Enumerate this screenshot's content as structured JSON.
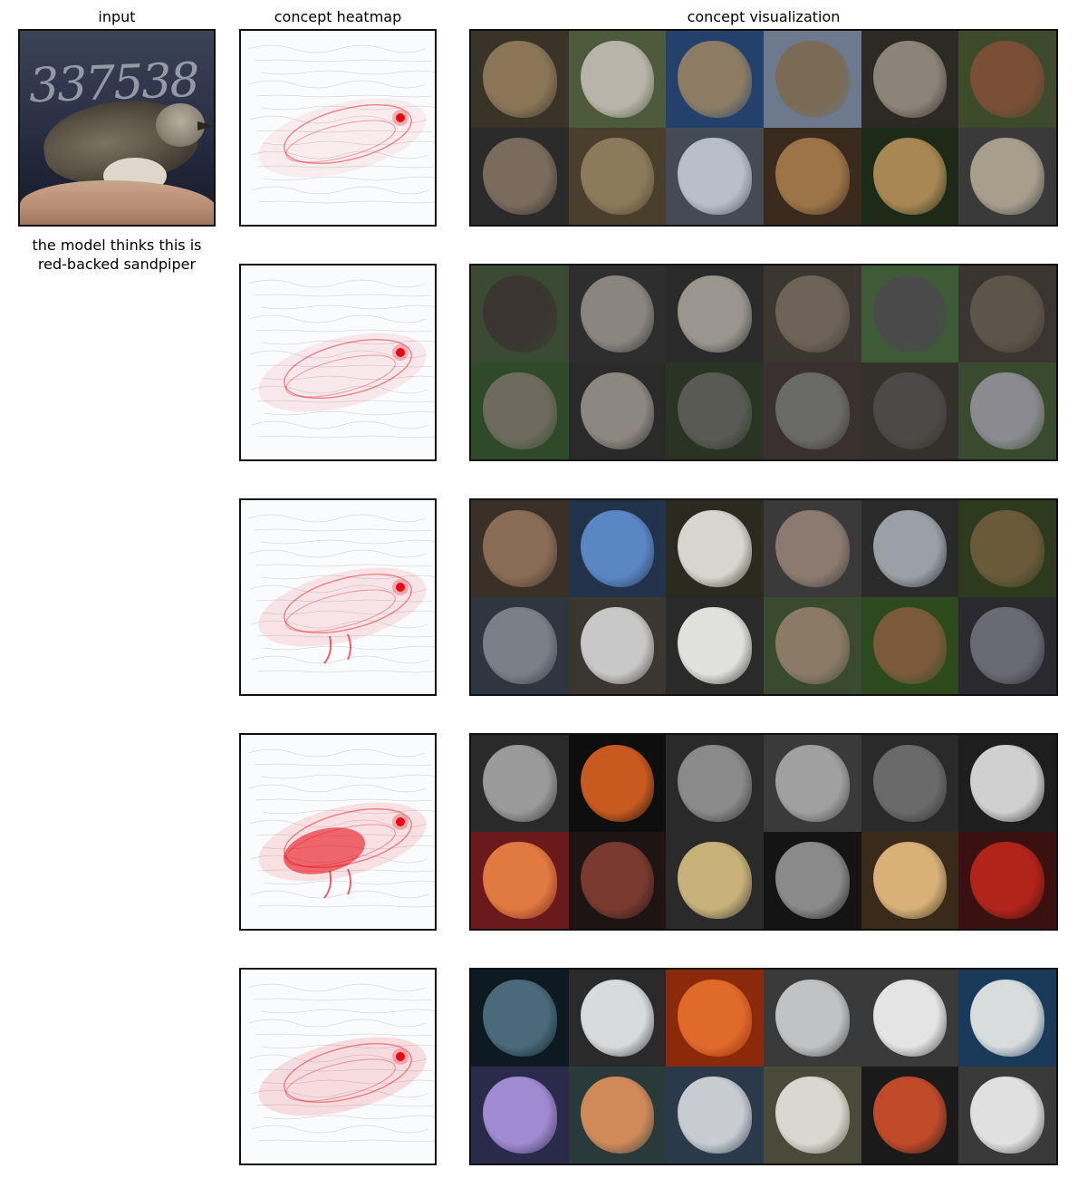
{
  "headers": {
    "input": "input",
    "heatmap": "concept heatmap",
    "visualization": "concept visualization"
  },
  "input_image": {
    "digits_text": "337538"
  },
  "caption": {
    "line1": "the model thinks this is",
    "line2": "red-backed sandpiper"
  },
  "concepts": [
    {
      "heat_color": "#e8000b",
      "cells": [
        {
          "bg": "#3a3328",
          "fg": "#8a7556"
        },
        {
          "bg": "#4e5a3c",
          "fg": "#b9b4aa"
        },
        {
          "bg": "#23416b",
          "fg": "#8d7c63"
        },
        {
          "bg": "#6d7a8e",
          "fg": "#7b6a54"
        },
        {
          "bg": "#2d2a26",
          "fg": "#8c8478"
        },
        {
          "bg": "#3d4a2b",
          "fg": "#7a4f36"
        },
        {
          "bg": "#2b2b2b",
          "fg": "#7a6b5c"
        },
        {
          "bg": "#4a3e2c",
          "fg": "#8d7a5b"
        },
        {
          "bg": "#454b55",
          "fg": "#b9bfc8"
        },
        {
          "bg": "#3a2a1e",
          "fg": "#9c7448"
        },
        {
          "bg": "#1e2a18",
          "fg": "#a88752"
        },
        {
          "bg": "#3a3a3a",
          "fg": "#a89e8c"
        }
      ]
    },
    {
      "heat_color": "#e8000b",
      "cells": [
        {
          "bg": "#3b4a33",
          "fg": "#3a3530"
        },
        {
          "bg": "#2e2e2e",
          "fg": "#8a857e"
        },
        {
          "bg": "#2a2a2a",
          "fg": "#9a968e"
        },
        {
          "bg": "#3c3630",
          "fg": "#6e6358"
        },
        {
          "bg": "#3e5a36",
          "fg": "#4a4a4a"
        },
        {
          "bg": "#3a3530",
          "fg": "#5e554a"
        },
        {
          "bg": "#2f4a28",
          "fg": "#6f6a5e"
        },
        {
          "bg": "#2a2a2a",
          "fg": "#8c877f"
        },
        {
          "bg": "#2a3324",
          "fg": "#5a5a55"
        },
        {
          "bg": "#3a3030",
          "fg": "#6a6a66"
        },
        {
          "bg": "#34302c",
          "fg": "#4c4a48"
        },
        {
          "bg": "#3a4a2e",
          "fg": "#8a8a90"
        }
      ]
    },
    {
      "heat_color": "#e8000b",
      "cells": [
        {
          "bg": "#3a3028",
          "fg": "#8a6c56"
        },
        {
          "bg": "#22324a",
          "fg": "#5a86c4"
        },
        {
          "bg": "#2a2a1e",
          "fg": "#d8d6cc"
        },
        {
          "bg": "#3a3a3a",
          "fg": "#8c7a70"
        },
        {
          "bg": "#2a2a2a",
          "fg": "#9aa0a6"
        },
        {
          "bg": "#2e3a1e",
          "fg": "#6a5a3a"
        },
        {
          "bg": "#2e3640",
          "fg": "#7a8088"
        },
        {
          "bg": "#3a3630",
          "fg": "#c8c8c8"
        },
        {
          "bg": "#2a2a2a",
          "fg": "#e0e0dc"
        },
        {
          "bg": "#3a4a2e",
          "fg": "#8a7a66"
        },
        {
          "bg": "#2c4a1e",
          "fg": "#7a5a3a"
        },
        {
          "bg": "#2a2a2e",
          "fg": "#6a6a74"
        }
      ]
    },
    {
      "heat_color": "#e8000b",
      "cells": [
        {
          "bg": "#2a2a2a",
          "fg": "#9a9a9a"
        },
        {
          "bg": "#0e0e0e",
          "fg": "#c85a20"
        },
        {
          "bg": "#2a2a2a",
          "fg": "#8a8a8a"
        },
        {
          "bg": "#3a3a3a",
          "fg": "#a0a0a0"
        },
        {
          "bg": "#2a2a2a",
          "fg": "#6a6a6a"
        },
        {
          "bg": "#1e1e1e",
          "fg": "#d0d0d0"
        },
        {
          "bg": "#6a1a1a",
          "fg": "#e07a40"
        },
        {
          "bg": "#1e1414",
          "fg": "#7a3a30"
        },
        {
          "bg": "#2a2a2a",
          "fg": "#c8b27a"
        },
        {
          "bg": "#141414",
          "fg": "#8a8a8a"
        },
        {
          "bg": "#3a2a1a",
          "fg": "#d8b078"
        },
        {
          "bg": "#3a1010",
          "fg": "#b0241a"
        }
      ]
    },
    {
      "heat_color": "#e8000b",
      "cells": [
        {
          "bg": "#0e1a22",
          "fg": "#4a6a7a"
        },
        {
          "bg": "#2a2a2a",
          "fg": "#d8dadc"
        },
        {
          "bg": "#8a2a0a",
          "fg": "#e06a2a"
        },
        {
          "bg": "#3a3a3a",
          "fg": "#c0c2c4"
        },
        {
          "bg": "#3a3a3a",
          "fg": "#e4e4e4"
        },
        {
          "bg": "#1a3a5a",
          "fg": "#d8dcdc"
        },
        {
          "bg": "#2a2a4a",
          "fg": "#a08ad0"
        },
        {
          "bg": "#2a3a3a",
          "fg": "#d08a5a"
        },
        {
          "bg": "#2a3a4a",
          "fg": "#c8ccd0"
        },
        {
          "bg": "#4a4a3a",
          "fg": "#d8d8d0"
        },
        {
          "bg": "#1a1a1a",
          "fg": "#c04a2a"
        },
        {
          "bg": "#3a3a3a",
          "fg": "#e0e0e0"
        }
      ]
    }
  ]
}
